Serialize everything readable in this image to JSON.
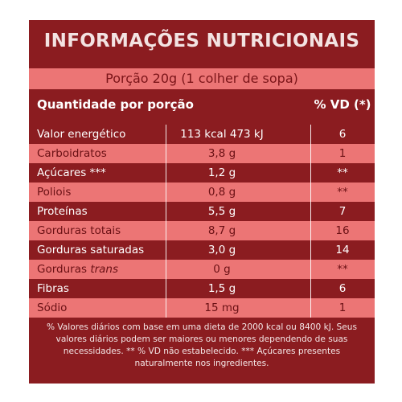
{
  "title": "INFORMAÇÕES NUTRICIONAIS",
  "serving": "Porção 20g (1 colher de sopa)",
  "headers": {
    "quantity": "Quantidade por porção",
    "vd": "% VD (*)"
  },
  "rows": [
    {
      "name": "Valor energético",
      "amount": "113 kcal 473 kJ",
      "vd": "6"
    },
    {
      "name": "Carboidratos",
      "amount": "3,8 g",
      "vd": "1"
    },
    {
      "name": "Açúcares ***",
      "amount": "1,2 g",
      "vd": "**"
    },
    {
      "name": "Poliois",
      "amount": "0,8 g",
      "vd": "**"
    },
    {
      "name": "Proteínas",
      "amount": "5,5 g",
      "vd": "7"
    },
    {
      "name": "Gorduras totais",
      "amount": "8,7 g",
      "vd": "16"
    },
    {
      "name": "Gorduras saturadas",
      "amount": "3,0 g",
      "vd": "14"
    },
    {
      "name": "Gorduras",
      "name_italic": "trans",
      "amount": "0 g",
      "vd": "**"
    },
    {
      "name": "Fibras",
      "amount": "1,5 g",
      "vd": "6"
    },
    {
      "name": "Sódio",
      "amount": "15 mg",
      "vd": "1"
    }
  ],
  "footnote": "% Valores diários com base em uma dieta de 2000 kcal ou 8400 kJ. Seus valores diários podem ser maiores ou menores dependendo de suas necessidades. ** % VD não estabelecido. *** Açúcares presentes naturalmente nos ingredientes.",
  "colors": {
    "dark_red": "#8b1c20",
    "salmon": "#ec7575",
    "white": "#ffffff"
  }
}
